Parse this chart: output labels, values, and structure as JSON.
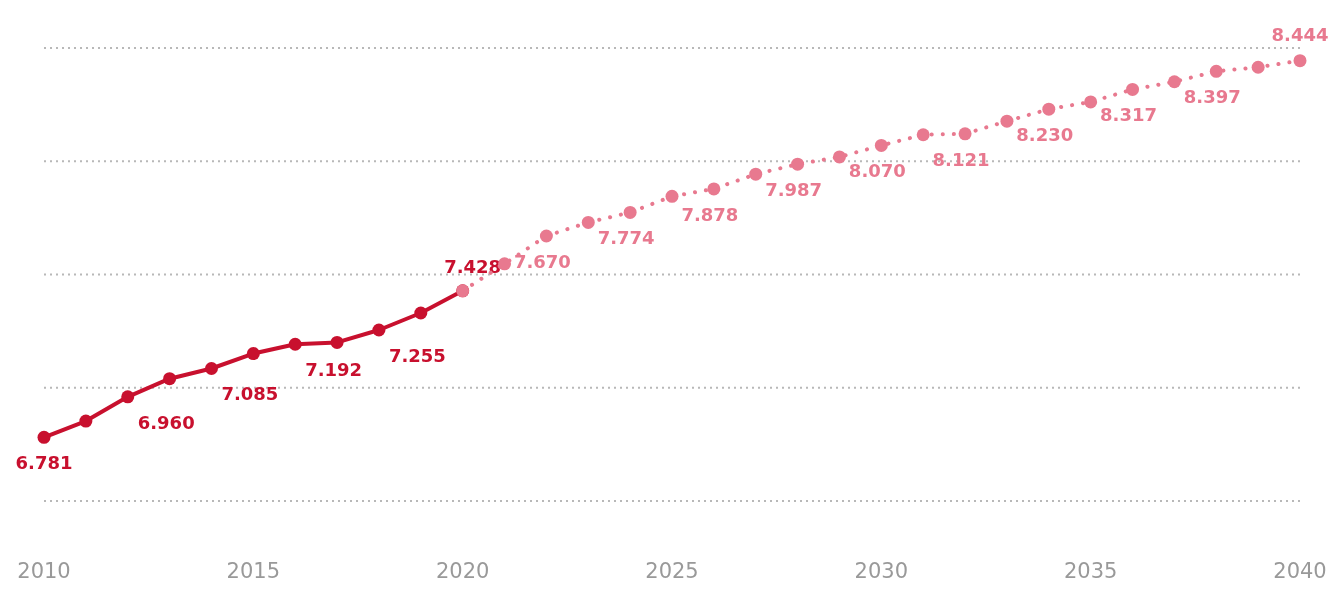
{
  "chart_data": {
    "type": "line",
    "xlim": [
      2010,
      2040
    ],
    "xticks": [
      2010,
      2015,
      2020,
      2025,
      2030,
      2035,
      2040
    ],
    "yticks": [
      {
        "value": 6.5,
        "label": null
      },
      {
        "value": 7,
        "label": null
      },
      {
        "value": 7.5,
        "label": null
      },
      {
        "value": 8,
        "label": null
      },
      {
        "value": 8.5,
        "label": null
      }
    ],
    "tick_labels": "x",
    "grid": "y",
    "marker": "circle",
    "series": [
      {
        "color": "#c8102e",
        "line_style": "solid",
        "x": [
          2010,
          2011,
          2012,
          2013,
          2014,
          2015,
          2016,
          2017,
          2018,
          2019,
          2020
        ],
        "values": [
          6.781,
          6.853,
          6.96,
          7.04,
          7.085,
          7.151,
          7.192,
          7.2,
          7.255,
          7.33,
          7.428
        ],
        "value_labels": [
          "6.781",
          null,
          "6.960",
          null,
          "7.085",
          null,
          "7.192",
          null,
          "7.255",
          null,
          "7.428"
        ]
      },
      {
        "color": "#e8798f",
        "line_style": "dotted",
        "x": [
          2020,
          2021,
          2022,
          2023,
          2024,
          2025,
          2026,
          2027,
          2028,
          2029,
          2030,
          2031,
          2032,
          2033,
          2034,
          2035,
          2036,
          2037,
          2038,
          2039,
          2040
        ],
        "values": [
          7.428,
          7.547,
          7.67,
          7.73,
          7.774,
          7.845,
          7.878,
          7.943,
          7.987,
          8.019,
          8.07,
          8.117,
          8.121,
          8.177,
          8.23,
          8.262,
          8.317,
          8.351,
          8.397,
          8.415,
          8.444
        ],
        "value_labels": [
          null,
          null,
          "7.670",
          null,
          "7.774",
          null,
          "7.878",
          null,
          "7.987",
          null,
          "8.070",
          null,
          "8.121",
          null,
          "8.230",
          null,
          "8.317",
          null,
          "8.397",
          null,
          "8.444"
        ]
      }
    ]
  }
}
